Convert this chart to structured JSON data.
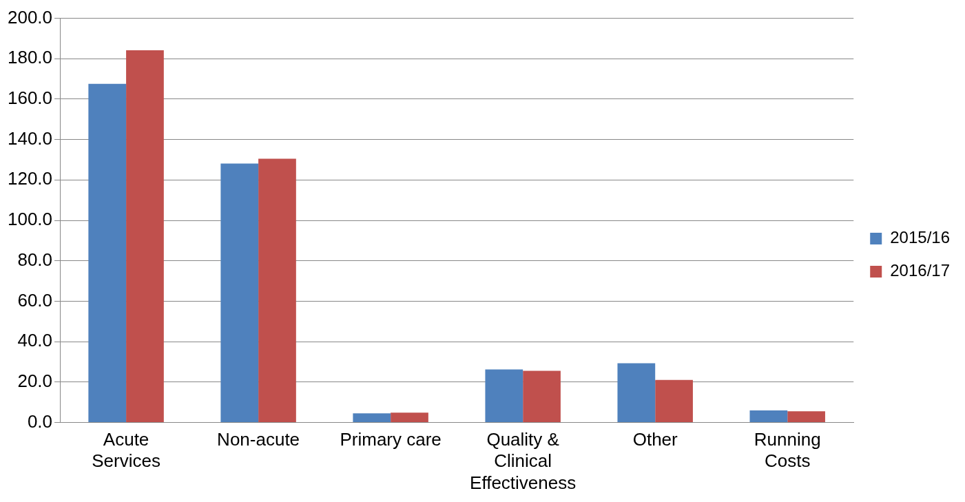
{
  "chart_data": {
    "type": "bar",
    "categories": [
      "Acute Services",
      "Non-acute",
      "Primary care",
      "Quality & Clinical Effectiveness",
      "Other",
      "Running Costs"
    ],
    "series": [
      {
        "name": "2015/16",
        "color": "#4f81bd",
        "values": [
          167.6,
          128.1,
          4.5,
          26.2,
          29.3,
          5.9
        ]
      },
      {
        "name": "2016/17",
        "color": "#c0504d",
        "values": [
          184.2,
          130.5,
          4.8,
          25.5,
          21.0,
          5.5
        ]
      }
    ],
    "ylim": [
      0,
      200
    ],
    "yticks": [
      {
        "value": 0,
        "label": "0.0"
      },
      {
        "value": 20,
        "label": "20.0"
      },
      {
        "value": 40,
        "label": "40.0"
      },
      {
        "value": 60,
        "label": "60.0"
      },
      {
        "value": 80,
        "label": "80.0"
      },
      {
        "value": 100,
        "label": "100.0"
      },
      {
        "value": 120,
        "label": "120.0"
      },
      {
        "value": 140,
        "label": "140.0"
      },
      {
        "value": 160,
        "label": "160.0"
      },
      {
        "value": 180,
        "label": "180.0"
      },
      {
        "value": 200,
        "label": "200.0"
      }
    ],
    "grid": "y",
    "legend": "right"
  }
}
